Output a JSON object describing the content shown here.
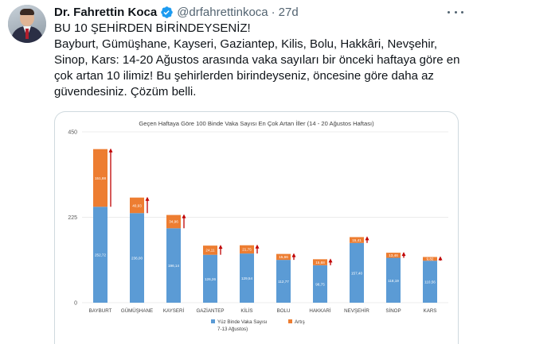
{
  "tweet": {
    "author_name": "Dr. Fahrettin Koca",
    "handle": "@drfahrettinkoca",
    "separator": "·",
    "time": "27d",
    "lines": [
      "BU 10 ŞEHİRDEN BİRİNDEYSENİZ!",
      "Bayburt, Gümüşhane, Kayseri, Gaziantep, Kilis, Bolu, Hakkâri, Nevşehir,",
      "Sinop, Kars: 14-20 Ağustos arasında vaka sayıları bir önceki haftaya göre en",
      "çok artan 10 ilimiz! Bu şehirlerden birindeyseniz, öncesine göre daha az",
      "güvendesiniz. Çözüm belli."
    ]
  },
  "colors": {
    "verified": "#1d9bf0",
    "base": "#5b9bd5",
    "increase": "#ed7d31",
    "arrow": "#c00000",
    "grid": "#d9d9d9"
  },
  "chart_data": {
    "type": "bar",
    "stacked": true,
    "title": "Geçen Haftaya Göre 100 Binde Vaka Sayısı En Çok Artan İller (14 - 20 Ağustos Haftası)",
    "categories": [
      "BAYBURT",
      "GÜMÜŞHANE",
      "KAYSERİ",
      "GAZİANTEP",
      "KİLİS",
      "BOLU",
      "HAKKARİ",
      "NEVŞEHİR",
      "SİNOP",
      "KARS"
    ],
    "series": [
      {
        "name": "Yüz Binde Vaka Sayısı 7-13 Ağustos)",
        "values": [
          252.72,
          236.0,
          196.14,
          126.26,
          129.54,
          112.77,
          98.75,
          157.4,
          118.19,
          110.56
        ],
        "labels": [
          "252,72",
          "236,00",
          "196,14",
          "126,26",
          "129,54",
          "112,77",
          "98,75",
          "157,40",
          "118,19",
          "110,56"
        ]
      },
      {
        "name": "Artış",
        "values": [
          151.88,
          40.93,
          34.96,
          24.11,
          21.75,
          15.66,
          15.68,
          15.41,
          13.46,
          9.82
        ],
        "labels": [
          "151,88",
          "40,93",
          "34,96",
          "24,11",
          "21,75",
          "15,66",
          "15,68",
          "15,41",
          "13,46",
          "9,82"
        ]
      }
    ],
    "yticks": [
      "0",
      "225",
      "450"
    ],
    "ylim": [
      0,
      450
    ],
    "grid": true,
    "legend_position": "bottom",
    "legend_lines": [
      "Yüz Binde Vaka Sayısı",
      "7-13 Ağustos)"
    ],
    "legend_increase": "Artış"
  }
}
